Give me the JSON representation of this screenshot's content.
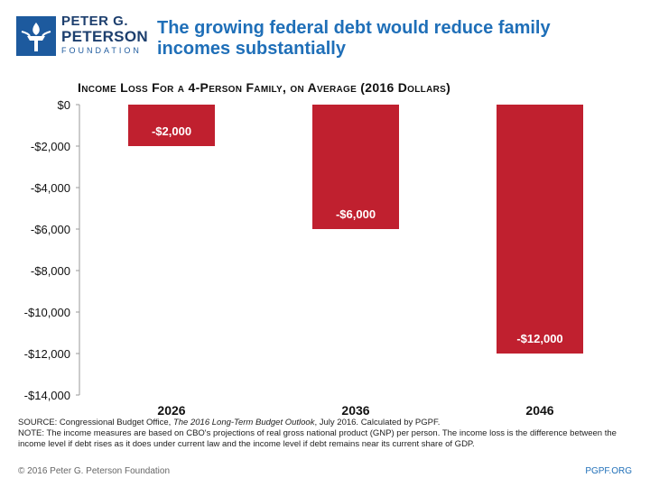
{
  "org": {
    "name_line1": "PETER G.",
    "name_line2": "PETERSON",
    "name_line3": "FOUNDATION"
  },
  "headline": "The growing federal debt would reduce family incomes substantially",
  "chart_data": {
    "type": "bar",
    "title": "Income Loss For a 4-Person Family, on Average (2016 Dollars)",
    "categories": [
      "2026",
      "2036",
      "2046"
    ],
    "values": [
      -2000,
      -6000,
      -12000
    ],
    "data_labels": [
      "-$2,000",
      "-$6,000",
      "-$12,000"
    ],
    "xlabel": "",
    "ylabel": "",
    "ylim": [
      -14000,
      0
    ],
    "yticks": [
      0,
      -2000,
      -4000,
      -6000,
      -8000,
      -10000,
      -12000,
      -14000
    ],
    "ytick_labels": [
      "$0",
      "-$2,000",
      "-$4,000",
      "-$6,000",
      "-$8,000",
      "-$10,000",
      "-$12,000",
      "-$14,000"
    ],
    "bar_color": "#c0202f",
    "grid": false
  },
  "source": {
    "line1_prefix": "SOURCE: Congressional Budget Office, ",
    "line1_italic": "The 2016 Long-Term Budget Outlook",
    "line1_suffix": ", July 2016. Calculated by PGPF.",
    "note": "NOTE: The income measures are based on CBO's projections of real gross national product (GNP) per person. The income loss is the difference between the income level if debt rises as it does under current law and the income level if debt remains near its current share of GDP."
  },
  "footer": {
    "copyright": "© 2016 Peter G. Peterson Foundation",
    "site": "PGPF.ORG"
  }
}
